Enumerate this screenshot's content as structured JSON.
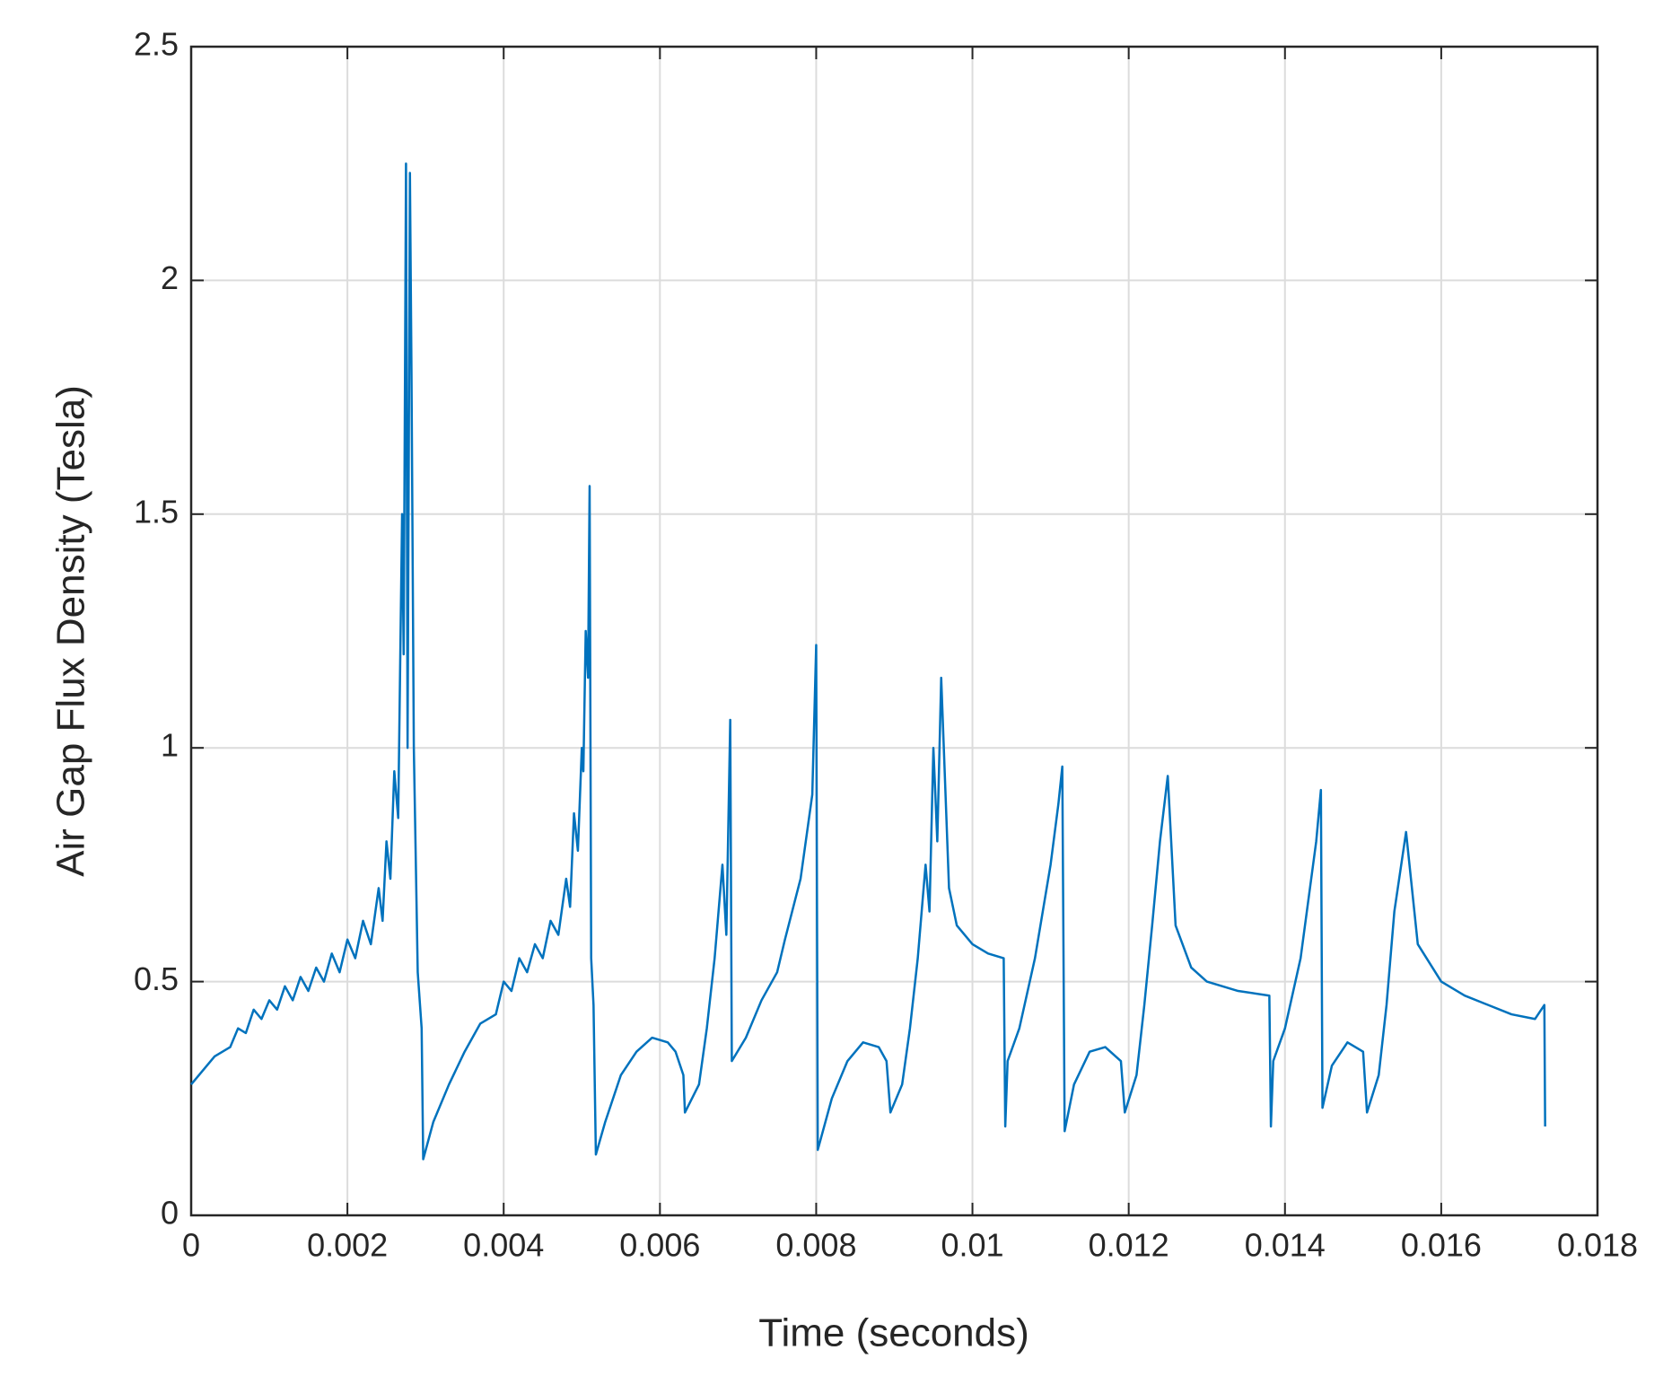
{
  "chart_data": {
    "type": "line",
    "xlabel": "Time (seconds)",
    "ylabel": "Air Gap Flux Density (Tesla)",
    "color": "#0072bd",
    "grid": true,
    "xlim": [
      0,
      0.018
    ],
    "xticks": [
      0,
      0.002,
      0.004,
      0.006,
      0.008,
      0.01,
      0.012,
      0.014,
      0.016,
      0.018
    ],
    "ylim": [
      0,
      2.5
    ],
    "yticks": [
      0,
      0.5,
      1,
      1.5,
      2,
      2.5
    ],
    "x": [
      0,
      0.0003,
      0.0005,
      0.0006,
      0.0007,
      0.0008,
      0.0009,
      0.001,
      0.0011,
      0.0012,
      0.0013,
      0.0014,
      0.0015,
      0.0016,
      0.0017,
      0.0018,
      0.0019,
      0.002,
      0.0021,
      0.0022,
      0.0023,
      0.0024,
      0.00245,
      0.0025,
      0.00255,
      0.0026,
      0.00265,
      0.0027,
      0.00272,
      0.00275,
      0.00277,
      0.0028,
      0.00282,
      0.00285,
      0.0029,
      0.00295,
      0.00297,
      0.0031,
      0.0033,
      0.0035,
      0.0037,
      0.0039,
      0.004,
      0.0041,
      0.0042,
      0.0043,
      0.0044,
      0.0045,
      0.0046,
      0.0047,
      0.0048,
      0.00485,
      0.0049,
      0.00495,
      0.005,
      0.00502,
      0.00505,
      0.00508,
      0.0051,
      0.00512,
      0.00515,
      0.00518,
      0.0053,
      0.0055,
      0.0057,
      0.0059,
      0.0061,
      0.0062,
      0.0063,
      0.00632,
      0.0065,
      0.0066,
      0.0067,
      0.0068,
      0.00685,
      0.0069,
      0.00692,
      0.0071,
      0.0073,
      0.0075,
      0.0076,
      0.0078,
      0.00795,
      0.008,
      0.00802,
      0.0082,
      0.0084,
      0.0086,
      0.0088,
      0.0089,
      0.00895,
      0.0091,
      0.0092,
      0.0093,
      0.0094,
      0.00945,
      0.0095,
      0.00955,
      0.0096,
      0.0097,
      0.0098,
      0.01,
      0.0102,
      0.0104,
      0.01042,
      0.01045,
      0.0106,
      0.0108,
      0.011,
      0.0111,
      0.01115,
      0.01118,
      0.0113,
      0.0115,
      0.0117,
      0.0119,
      0.01195,
      0.0121,
      0.0122,
      0.0123,
      0.0124,
      0.0125,
      0.0126,
      0.0128,
      0.013,
      0.0132,
      0.0134,
      0.0138,
      0.01382,
      0.01385,
      0.014,
      0.0142,
      0.0144,
      0.01446,
      0.01448,
      0.0146,
      0.0148,
      0.015,
      0.01505,
      0.0152,
      0.0153,
      0.0154,
      0.01555,
      0.0157,
      0.016,
      0.0163,
      0.0166,
      0.0169,
      0.0172,
      0.01732,
      0.01733
    ],
    "values": [
      0.28,
      0.34,
      0.36,
      0.4,
      0.39,
      0.44,
      0.42,
      0.46,
      0.44,
      0.49,
      0.46,
      0.51,
      0.48,
      0.53,
      0.5,
      0.56,
      0.52,
      0.59,
      0.55,
      0.63,
      0.58,
      0.7,
      0.63,
      0.8,
      0.72,
      0.95,
      0.85,
      1.5,
      1.2,
      2.25,
      1.0,
      2.23,
      1.8,
      1.0,
      0.52,
      0.4,
      0.12,
      0.2,
      0.28,
      0.35,
      0.41,
      0.43,
      0.5,
      0.48,
      0.55,
      0.52,
      0.58,
      0.55,
      0.63,
      0.6,
      0.72,
      0.66,
      0.86,
      0.78,
      1.0,
      0.95,
      1.25,
      1.15,
      1.56,
      0.55,
      0.45,
      0.13,
      0.2,
      0.3,
      0.35,
      0.38,
      0.37,
      0.35,
      0.3,
      0.22,
      0.28,
      0.4,
      0.55,
      0.75,
      0.6,
      1.06,
      0.33,
      0.38,
      0.46,
      0.52,
      0.59,
      0.72,
      0.9,
      1.22,
      0.14,
      0.25,
      0.33,
      0.37,
      0.36,
      0.33,
      0.22,
      0.28,
      0.4,
      0.55,
      0.75,
      0.65,
      1.0,
      0.8,
      1.15,
      0.7,
      0.62,
      0.58,
      0.56,
      0.55,
      0.19,
      0.33,
      0.4,
      0.55,
      0.75,
      0.88,
      0.96,
      0.18,
      0.28,
      0.35,
      0.36,
      0.33,
      0.22,
      0.3,
      0.45,
      0.62,
      0.8,
      0.94,
      0.62,
      0.53,
      0.5,
      0.49,
      0.48,
      0.47,
      0.19,
      0.33,
      0.4,
      0.55,
      0.8,
      0.91,
      0.23,
      0.32,
      0.37,
      0.35,
      0.22,
      0.3,
      0.45,
      0.65,
      0.82,
      0.58,
      0.5,
      0.47,
      0.45,
      0.43,
      0.42,
      0.45,
      0.19
    ]
  }
}
